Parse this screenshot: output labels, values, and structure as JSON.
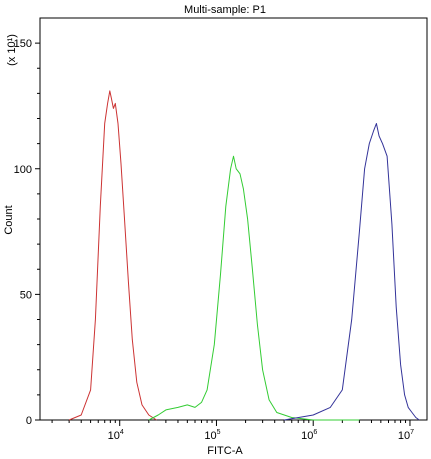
{
  "chart_data": {
    "type": "line",
    "title": "Multi-sample: P1",
    "xlabel": "FITC-A",
    "ylabel": "Count",
    "y_scale_note": "(x 10¹)",
    "x_scale": "log",
    "xlim": [
      1500,
      15000000
    ],
    "ylim": [
      0,
      160
    ],
    "x_ticks": [
      {
        "value": 10000,
        "base": "10",
        "exp": "4"
      },
      {
        "value": 100000,
        "base": "10",
        "exp": "5"
      },
      {
        "value": 1000000,
        "base": "10",
        "exp": "6"
      },
      {
        "value": 10000000,
        "base": "10",
        "exp": "7"
      }
    ],
    "y_ticks": [
      {
        "value": 0,
        "label": "0"
      },
      {
        "value": 50,
        "label": "50"
      },
      {
        "value": 100,
        "label": "100"
      },
      {
        "value": 150,
        "label": "150"
      }
    ],
    "grid": false,
    "legend": "none",
    "series": [
      {
        "color": "#cc3333",
        "x": [
          3000,
          4000,
          5000,
          5600,
          6300,
          7000,
          7500,
          7900,
          8200,
          8600,
          9000,
          9600,
          10300,
          11200,
          12300,
          13500,
          15000,
          17000,
          20000,
          24000
        ],
        "y": [
          0,
          2,
          12,
          40,
          85,
          118,
          126,
          131,
          128,
          124,
          126,
          118,
          102,
          80,
          55,
          32,
          15,
          6,
          2,
          0
        ]
      },
      {
        "color": "#33cc33",
        "x": [
          20000,
          25000,
          30000,
          40000,
          50000,
          60000,
          70000,
          80000,
          95000,
          110000,
          125000,
          140000,
          150000,
          160000,
          175000,
          190000,
          210000,
          235000,
          265000,
          300000,
          350000,
          420000,
          600000,
          1000000,
          3000000
        ],
        "y": [
          0,
          2,
          4,
          5,
          6,
          5,
          7,
          12,
          30,
          58,
          85,
          100,
          105,
          100,
          98,
          92,
          80,
          60,
          38,
          20,
          8,
          3,
          1,
          0,
          0
        ]
      },
      {
        "color": "#333399",
        "x": [
          500000,
          1000000,
          1500000,
          2000000,
          2500000,
          3000000,
          3400000,
          3800000,
          4200000,
          4500000,
          4800000,
          5200000,
          5800000,
          6500000,
          7200000,
          8000000,
          8800000,
          9600000,
          10500000,
          11500000,
          12500000
        ],
        "y": [
          0,
          2,
          5,
          12,
          40,
          75,
          100,
          110,
          115,
          118,
          113,
          110,
          105,
          78,
          45,
          22,
          10,
          5,
          3,
          1,
          0
        ]
      }
    ]
  }
}
